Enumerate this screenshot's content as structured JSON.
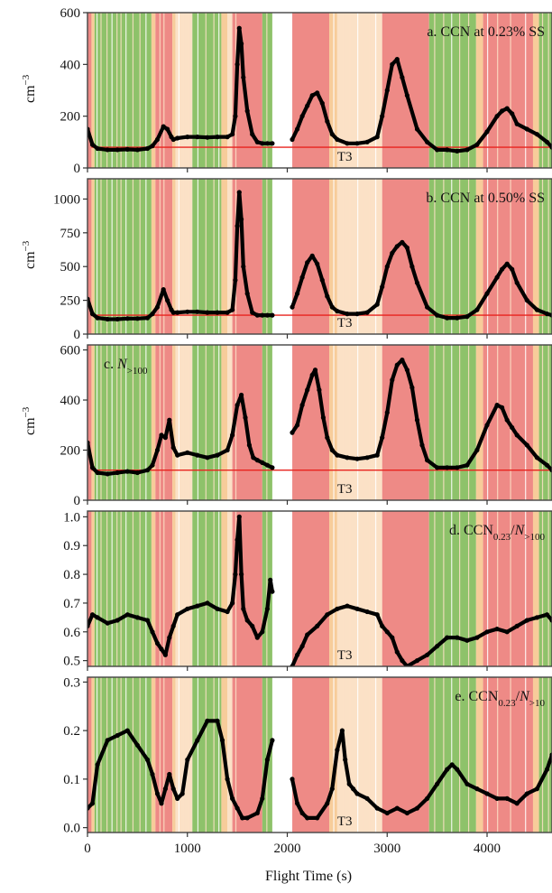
{
  "figure": {
    "x_axis_label": "Flight Time (s)",
    "x_ticks": [
      0,
      1000,
      2000,
      3000,
      4000
    ],
    "xlim": [
      0,
      4650
    ],
    "gap": [
      1850,
      2050
    ],
    "background_colors": {
      "green": "#8ec26a",
      "red": "#ee8a86",
      "orange": "#f7cc9a",
      "light": "#fbe1c6"
    },
    "panel_border_color": "#444444",
    "reference_line_color": "#e8231e",
    "data_color": "#000000"
  },
  "chart_data": [
    {
      "type": "scatter",
      "panel": "a",
      "title_main": "a. CCN at 0.23% SS",
      "title_sub": "",
      "title_tail": "",
      "title_prefix": "",
      "ylabel": "cm",
      "ylabel_exp": "−3",
      "ylim": [
        0,
        600
      ],
      "yticks": [
        0,
        200,
        400,
        600
      ],
      "ref_value": 80,
      "ref_label": "T3",
      "title_pos": "top-right",
      "x": [
        0,
        50,
        100,
        200,
        300,
        400,
        500,
        600,
        650,
        700,
        760,
        800,
        840,
        860,
        900,
        1000,
        1100,
        1200,
        1300,
        1400,
        1450,
        1480,
        1500,
        1520,
        1540,
        1560,
        1600,
        1650,
        1700,
        1750,
        1800,
        1850,
        2050,
        2100,
        2150,
        2200,
        2250,
        2300,
        2350,
        2400,
        2450,
        2500,
        2600,
        2700,
        2800,
        2900,
        2950,
        3000,
        3050,
        3100,
        3150,
        3200,
        3300,
        3400,
        3500,
        3600,
        3700,
        3800,
        3900,
        4000,
        4100,
        4150,
        4200,
        4250,
        4300,
        4400,
        4500,
        4600,
        4650
      ],
      "y": [
        150,
        90,
        75,
        70,
        70,
        72,
        70,
        75,
        85,
        110,
        160,
        150,
        120,
        110,
        115,
        120,
        120,
        118,
        120,
        120,
        130,
        200,
        400,
        540,
        480,
        350,
        220,
        130,
        100,
        95,
        95,
        95,
        110,
        150,
        200,
        240,
        280,
        290,
        250,
        180,
        130,
        110,
        95,
        95,
        100,
        120,
        200,
        300,
        400,
        420,
        350,
        280,
        150,
        100,
        70,
        70,
        65,
        70,
        90,
        140,
        200,
        220,
        230,
        210,
        170,
        150,
        130,
        100,
        80
      ]
    },
    {
      "type": "scatter",
      "panel": "b",
      "title_main": "b. CCN at 0.50% SS",
      "title_sub": "",
      "title_tail": "",
      "title_prefix": "",
      "ylabel": "cm",
      "ylabel_exp": "−3",
      "ylim": [
        0,
        1150
      ],
      "yticks": [
        0,
        250,
        500,
        750,
        1000
      ],
      "ref_value": 140,
      "ref_label": "T3",
      "title_pos": "top-right",
      "x": [
        0,
        50,
        100,
        200,
        300,
        400,
        500,
        600,
        650,
        700,
        760,
        800,
        840,
        860,
        900,
        1000,
        1100,
        1200,
        1300,
        1400,
        1450,
        1480,
        1500,
        1520,
        1540,
        1560,
        1600,
        1650,
        1700,
        1750,
        1800,
        1850,
        2050,
        2100,
        2150,
        2200,
        2250,
        2300,
        2350,
        2400,
        2450,
        2500,
        2600,
        2700,
        2800,
        2900,
        2950,
        3000,
        3050,
        3100,
        3150,
        3200,
        3250,
        3300,
        3400,
        3500,
        3600,
        3700,
        3800,
        3900,
        4000,
        4100,
        4150,
        4200,
        4250,
        4300,
        4400,
        4500,
        4600,
        4650
      ],
      "y": [
        260,
        150,
        120,
        110,
        110,
        115,
        115,
        120,
        150,
        200,
        330,
        250,
        180,
        160,
        160,
        165,
        165,
        160,
        160,
        160,
        180,
        400,
        800,
        1050,
        850,
        500,
        300,
        160,
        140,
        140,
        140,
        140,
        200,
        300,
        420,
        530,
        580,
        520,
        400,
        280,
        200,
        170,
        150,
        150,
        160,
        220,
        350,
        500,
        600,
        650,
        680,
        640,
        500,
        380,
        200,
        140,
        120,
        120,
        130,
        180,
        300,
        420,
        480,
        520,
        480,
        380,
        250,
        180,
        150,
        140
      ]
    },
    {
      "type": "scatter",
      "panel": "c",
      "title_main": "",
      "title_sub": ">100",
      "title_tail": "",
      "title_prefix": "c.",
      "ylabel": "cm",
      "ylabel_exp": "−3",
      "ylim": [
        0,
        620
      ],
      "yticks": [
        0,
        200,
        400,
        600
      ],
      "ref_value": 120,
      "ref_label": "T3",
      "title_pos": "top-left",
      "x": [
        0,
        50,
        100,
        200,
        300,
        400,
        500,
        600,
        650,
        700,
        740,
        780,
        820,
        860,
        900,
        1000,
        1100,
        1200,
        1300,
        1400,
        1450,
        1500,
        1540,
        1580,
        1620,
        1660,
        1700,
        1750,
        1800,
        1850,
        2050,
        2100,
        2150,
        2200,
        2250,
        2280,
        2320,
        2360,
        2400,
        2450,
        2500,
        2600,
        2700,
        2800,
        2900,
        2950,
        3000,
        3050,
        3100,
        3150,
        3200,
        3250,
        3300,
        3350,
        3400,
        3500,
        3600,
        3700,
        3800,
        3900,
        4000,
        4100,
        4150,
        4200,
        4250,
        4300,
        4400,
        4500,
        4600,
        4650
      ],
      "y": [
        230,
        130,
        110,
        105,
        110,
        115,
        110,
        120,
        140,
        200,
        260,
        250,
        320,
        210,
        180,
        190,
        180,
        170,
        180,
        200,
        260,
        380,
        420,
        330,
        220,
        170,
        160,
        150,
        140,
        130,
        270,
        300,
        380,
        440,
        500,
        520,
        440,
        330,
        250,
        200,
        180,
        170,
        165,
        170,
        180,
        250,
        350,
        480,
        540,
        560,
        520,
        450,
        320,
        220,
        160,
        130,
        130,
        130,
        140,
        200,
        300,
        380,
        370,
        320,
        290,
        260,
        220,
        170,
        140,
        120
      ]
    },
    {
      "type": "scatter",
      "panel": "d",
      "title_main": "",
      "title_sub": "0.23",
      "title_tail": ">100",
      "title_prefix": "d. CCN",
      "ylabel": "",
      "ylabel_exp": "",
      "ylim": [
        0.48,
        1.02
      ],
      "yticks": [
        0.5,
        0.6,
        0.7,
        0.8,
        0.9,
        1.0
      ],
      "ref_value": null,
      "ref_label": "T3",
      "title_pos": "top-right",
      "x": [
        0,
        50,
        100,
        200,
        300,
        400,
        500,
        600,
        650,
        700,
        740,
        780,
        820,
        860,
        900,
        1000,
        1100,
        1200,
        1300,
        1400,
        1450,
        1480,
        1500,
        1520,
        1540,
        1560,
        1600,
        1650,
        1700,
        1750,
        1800,
        1830,
        1850,
        2050,
        2100,
        2150,
        2200,
        2300,
        2400,
        2500,
        2600,
        2700,
        2800,
        2900,
        2950,
        3000,
        3050,
        3100,
        3150,
        3200,
        3300,
        3400,
        3500,
        3600,
        3700,
        3800,
        3900,
        4000,
        4100,
        4200,
        4300,
        4400,
        4500,
        4600,
        4650
      ],
      "y": [
        0.62,
        0.66,
        0.65,
        0.63,
        0.64,
        0.66,
        0.65,
        0.64,
        0.6,
        0.56,
        0.54,
        0.52,
        0.58,
        0.62,
        0.66,
        0.68,
        0.69,
        0.7,
        0.68,
        0.67,
        0.7,
        0.8,
        0.92,
        1.0,
        0.8,
        0.68,
        0.64,
        0.62,
        0.58,
        0.6,
        0.68,
        0.78,
        0.74,
        0.48,
        0.52,
        0.55,
        0.59,
        0.62,
        0.66,
        0.68,
        0.69,
        0.68,
        0.67,
        0.66,
        0.62,
        0.6,
        0.58,
        0.53,
        0.5,
        0.48,
        0.5,
        0.52,
        0.55,
        0.58,
        0.58,
        0.57,
        0.58,
        0.6,
        0.61,
        0.6,
        0.62,
        0.64,
        0.65,
        0.66,
        0.64
      ]
    },
    {
      "type": "scatter",
      "panel": "e",
      "title_main": "",
      "title_sub": "0.23",
      "title_tail": ">10",
      "title_prefix": "e. CCN",
      "ylabel": "",
      "ylabel_exp": "",
      "ylim": [
        -0.01,
        0.31
      ],
      "yticks": [
        0.0,
        0.1,
        0.2,
        0.3
      ],
      "ref_value": null,
      "ref_label": "T3",
      "title_pos": "top-right",
      "x": [
        0,
        50,
        100,
        200,
        300,
        400,
        500,
        600,
        650,
        700,
        740,
        780,
        820,
        860,
        900,
        950,
        1000,
        1100,
        1200,
        1300,
        1350,
        1400,
        1450,
        1500,
        1550,
        1600,
        1700,
        1750,
        1800,
        1850,
        2050,
        2100,
        2150,
        2200,
        2300,
        2400,
        2450,
        2500,
        2550,
        2580,
        2620,
        2660,
        2700,
        2800,
        2900,
        3000,
        3100,
        3200,
        3300,
        3400,
        3500,
        3600,
        3650,
        3700,
        3800,
        3900,
        4000,
        4100,
        4200,
        4300,
        4400,
        4500,
        4600,
        4650
      ],
      "y": [
        0.04,
        0.05,
        0.13,
        0.18,
        0.19,
        0.2,
        0.17,
        0.14,
        0.11,
        0.07,
        0.05,
        0.08,
        0.11,
        0.08,
        0.06,
        0.07,
        0.14,
        0.18,
        0.22,
        0.22,
        0.18,
        0.1,
        0.06,
        0.04,
        0.02,
        0.02,
        0.03,
        0.06,
        0.14,
        0.18,
        0.1,
        0.05,
        0.03,
        0.02,
        0.02,
        0.05,
        0.08,
        0.16,
        0.2,
        0.14,
        0.09,
        0.08,
        0.07,
        0.06,
        0.04,
        0.03,
        0.04,
        0.03,
        0.04,
        0.06,
        0.09,
        0.12,
        0.13,
        0.12,
        0.09,
        0.08,
        0.07,
        0.06,
        0.06,
        0.05,
        0.07,
        0.08,
        0.12,
        0.15
      ]
    }
  ]
}
